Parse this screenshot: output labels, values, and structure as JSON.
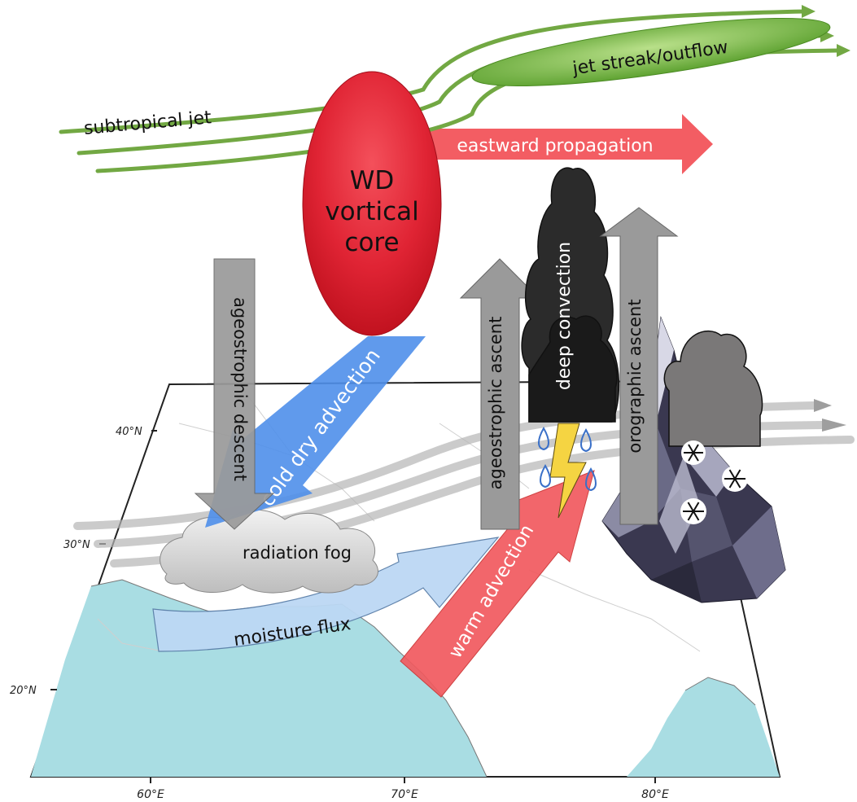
{
  "labels": {
    "subtropical_jet": "subtropical jet",
    "jet_streak": "jet streak/outflow",
    "eastward_propagation": "eastward propagation",
    "wd_line1": "WD",
    "wd_line2": "vortical",
    "wd_line3": "core",
    "ageostrophic_descent": "ageostrophic descent",
    "cold_dry_advection": "cold dry advection",
    "radiation_fog": "radiation fog",
    "moisture_flux": "moisture flux",
    "warm_advection": "warm advection",
    "ageostrophic_ascent": "ageostrophic ascent",
    "deep_convection": "deep convection",
    "orographic_ascent": "orographic ascent"
  },
  "map": {
    "lat_labels": [
      "40°N",
      "30°N",
      "20°N"
    ],
    "lon_labels": [
      "60°E",
      "70°E",
      "80°E"
    ]
  },
  "colors": {
    "jet": "#72a843",
    "wd_core": "#e02030",
    "propagation": "#f2545b",
    "cold_advection": "#4f8fea",
    "moisture": "#bcd8f4",
    "warm_advection": "#f15a5f",
    "gray_arrow": "#9a9a9a",
    "ocean": "#a9dde3",
    "cloud_dark": "#2a2a2a",
    "cloud_gray": "#7a7878",
    "lightning": "#f5d442",
    "mountain": "#3a3850"
  },
  "icons": [
    "lightning-icon",
    "raindrop-icon",
    "snowflake-icon"
  ]
}
